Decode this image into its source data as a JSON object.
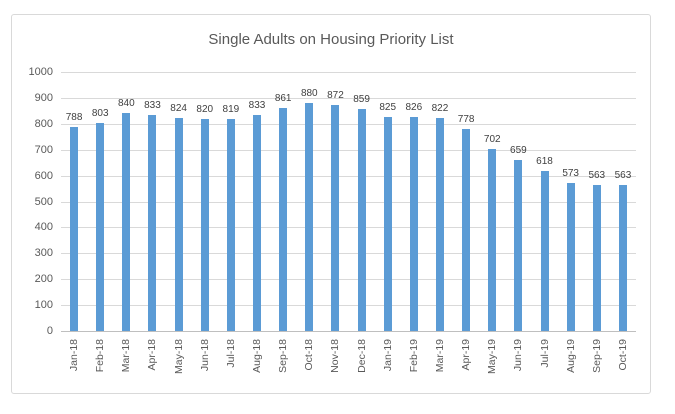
{
  "chart_data": {
    "type": "bar",
    "title": "Single Adults on Housing Priority List",
    "categories": [
      "Jan-18",
      "Feb-18",
      "Mar-18",
      "Apr-18",
      "May-18",
      "Jun-18",
      "Jul-18",
      "Aug-18",
      "Sep-18",
      "Oct-18",
      "Nov-18",
      "Dec-18",
      "Jan-19",
      "Feb-19",
      "Mar-19",
      "Apr-19",
      "May-19",
      "Jun-19",
      "Jul-19",
      "Aug-19",
      "Sep-19",
      "Oct-19"
    ],
    "values": [
      788,
      803,
      840,
      833,
      824,
      820,
      819,
      833,
      861,
      880,
      872,
      859,
      825,
      826,
      822,
      778,
      702,
      659,
      618,
      573,
      563,
      563
    ],
    "xlabel": "",
    "ylabel": "",
    "ylim": [
      0,
      1000
    ],
    "ytick_step": 100,
    "grid": true,
    "legend": "none",
    "data_labels": true,
    "bar_color": "#5B9BD5",
    "gridline_color": "#D9D9D9",
    "axis_line_color": "#BFBFBF",
    "title_color": "#595959",
    "axis_text_color": "#595959",
    "data_label_color": "#404040"
  }
}
